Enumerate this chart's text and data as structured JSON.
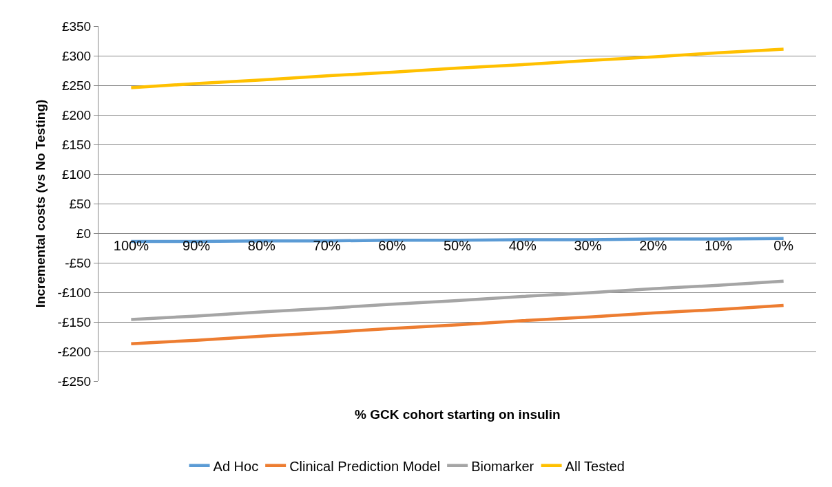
{
  "chart_data": {
    "type": "line",
    "xlabel": "% GCK cohort starting on insulin",
    "ylabel": "Incremental costs (vs No Testing)",
    "categories": [
      "100%",
      "90%",
      "80%",
      "70%",
      "60%",
      "50%",
      "40%",
      "30%",
      "20%",
      "10%",
      "0%"
    ],
    "series": [
      {
        "name": "Ad Hoc",
        "color": "#5b9bd5",
        "values": [
          -14,
          -14,
          -13,
          -13,
          -12,
          -12,
          -11,
          -11,
          -10,
          -10,
          -9
        ]
      },
      {
        "name": "Clinical Prediction Model",
        "color": "#ed7d31",
        "values": [
          -187,
          -181,
          -174,
          -168,
          -161,
          -155,
          -148,
          -142,
          -135,
          -129,
          -122
        ]
      },
      {
        "name": "Biomarker",
        "color": "#a5a5a5",
        "values": [
          -146,
          -140,
          -133,
          -127,
          -120,
          -114,
          -107,
          -101,
          -94,
          -88,
          -81
        ]
      },
      {
        "name": "All Tested",
        "color": "#ffc000",
        "values": [
          246,
          253,
          259,
          266,
          272,
          279,
          285,
          292,
          298,
          305,
          311
        ]
      }
    ],
    "ylim": [
      -250,
      350
    ],
    "yticks": [
      {
        "value": -250,
        "label": "-£250"
      },
      {
        "value": -200,
        "label": "-£200"
      },
      {
        "value": -150,
        "label": "-£150"
      },
      {
        "value": -100,
        "label": "-£100"
      },
      {
        "value": -50,
        "label": "-£50"
      },
      {
        "value": 0,
        "label": "£0"
      },
      {
        "value": 50,
        "label": "£50"
      },
      {
        "value": 100,
        "label": "£100"
      },
      {
        "value": 150,
        "label": "£150"
      },
      {
        "value": 200,
        "label": "£200"
      },
      {
        "value": 250,
        "label": "£250"
      },
      {
        "value": 300,
        "label": "£300"
      },
      {
        "value": 350,
        "label": "£350"
      }
    ],
    "grid": "y",
    "legend": "bottom",
    "marker": "none",
    "line_style": "solid"
  }
}
